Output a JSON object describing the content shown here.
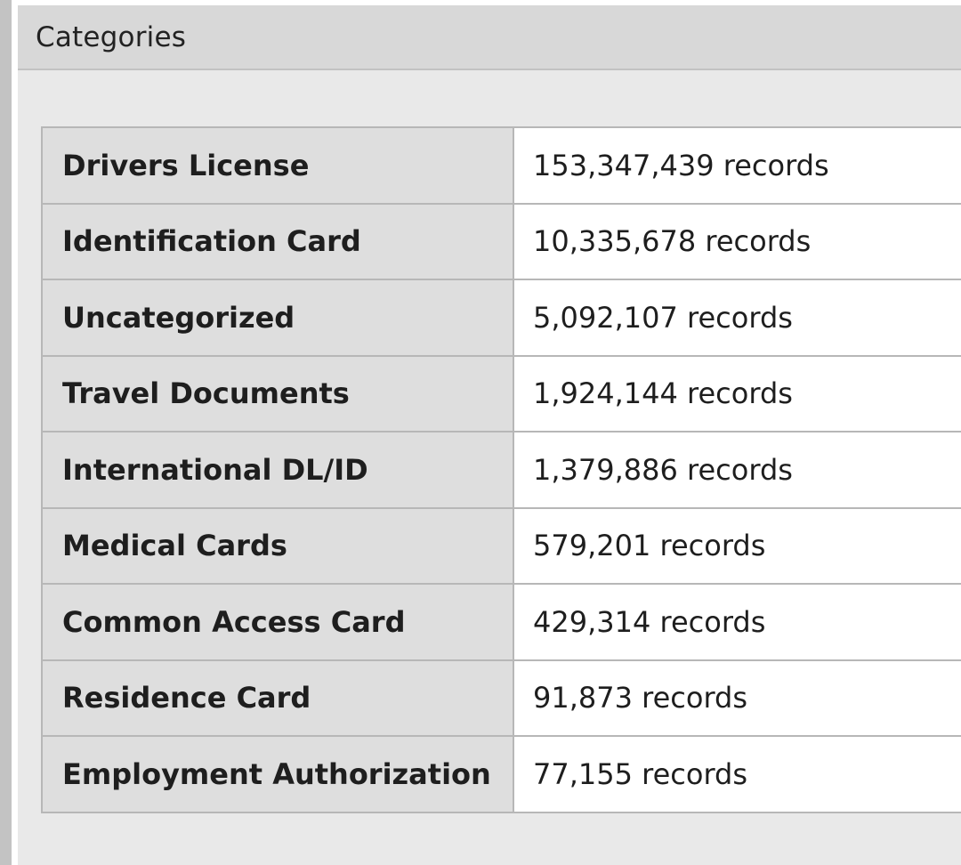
{
  "panel": {
    "title": "Categories"
  },
  "rows": [
    {
      "label": "Drivers License",
      "value": "153,347,439 records"
    },
    {
      "label": "Identification Card",
      "value": "10,335,678 records"
    },
    {
      "label": "Uncategorized",
      "value": "5,092,107 records"
    },
    {
      "label": "Travel Documents",
      "value": "1,924,144 records"
    },
    {
      "label": "International DL/ID",
      "value": "1,379,886 records"
    },
    {
      "label": "Medical Cards",
      "value": "579,201 records"
    },
    {
      "label": "Common Access Card",
      "value": "429,314 records"
    },
    {
      "label": "Residence Card",
      "value": "91,873 records"
    },
    {
      "label": "Employment Authorization",
      "value": "77,155 records"
    }
  ]
}
